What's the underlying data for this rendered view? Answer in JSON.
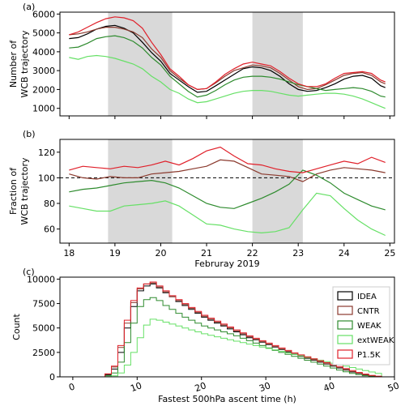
{
  "chart_data": [
    {
      "id": "a",
      "type": "line",
      "panel_label": "(a)",
      "ylabel_lines": [
        "Number of",
        "WCB trajectory"
      ],
      "xlim": [
        17.8,
        25.1
      ],
      "ylim": [
        600,
        6100
      ],
      "yticks": [
        1000,
        2000,
        3000,
        4000,
        5000,
        6000
      ],
      "shaded_periods": [
        [
          18.85,
          20.25
        ],
        [
          22.0,
          23.1
        ]
      ],
      "series": [
        {
          "name": "IDEA",
          "color": "#000000",
          "x": [
            18.0,
            18.2,
            18.4,
            18.6,
            18.8,
            19.0,
            19.2,
            19.4,
            19.6,
            19.8,
            20.0,
            20.2,
            20.4,
            20.6,
            20.8,
            21.0,
            21.2,
            21.4,
            21.6,
            21.8,
            22.0,
            22.2,
            22.4,
            22.6,
            22.8,
            23.0,
            23.2,
            23.4,
            23.6,
            23.8,
            24.0,
            24.2,
            24.4,
            24.6,
            24.8,
            24.9
          ],
          "y": [
            4700,
            4750,
            4950,
            5200,
            5350,
            5400,
            5250,
            5000,
            4500,
            3950,
            3500,
            2850,
            2500,
            2150,
            1850,
            1900,
            2200,
            2500,
            2800,
            3100,
            3200,
            3150,
            3000,
            2700,
            2300,
            2000,
            1900,
            1950,
            2100,
            2300,
            2550,
            2700,
            2750,
            2600,
            2200,
            2100
          ]
        },
        {
          "name": "CNTR",
          "color": "#8b3a2e",
          "x": [
            18.0,
            18.2,
            18.4,
            18.6,
            18.8,
            19.0,
            19.2,
            19.4,
            19.6,
            19.8,
            20.0,
            20.2,
            20.4,
            20.6,
            20.8,
            21.0,
            21.2,
            21.4,
            21.6,
            21.8,
            22.0,
            22.2,
            22.4,
            22.6,
            22.8,
            23.0,
            23.2,
            23.4,
            23.6,
            23.8,
            24.0,
            24.2,
            24.4,
            24.6,
            24.8,
            24.9
          ],
          "y": [
            4900,
            4950,
            5050,
            5200,
            5300,
            5300,
            5200,
            5050,
            4750,
            4150,
            3700,
            3000,
            2600,
            2250,
            2000,
            2050,
            2350,
            2700,
            3000,
            3150,
            3300,
            3250,
            3150,
            2850,
            2500,
            2150,
            2000,
            2050,
            2250,
            2500,
            2750,
            2850,
            2900,
            2750,
            2400,
            2300
          ]
        },
        {
          "name": "WEAK",
          "color": "#2e8b2e",
          "x": [
            18.0,
            18.2,
            18.4,
            18.6,
            18.8,
            19.0,
            19.2,
            19.4,
            19.6,
            19.8,
            20.0,
            20.2,
            20.4,
            20.6,
            20.8,
            21.0,
            21.2,
            21.4,
            21.6,
            21.8,
            22.0,
            22.2,
            22.4,
            22.6,
            22.8,
            23.0,
            23.2,
            23.4,
            23.6,
            23.8,
            24.0,
            24.2,
            24.4,
            24.6,
            24.8,
            24.9
          ],
          "y": [
            4200,
            4250,
            4450,
            4700,
            4800,
            4850,
            4750,
            4550,
            4200,
            3700,
            3300,
            2700,
            2300,
            1900,
            1600,
            1700,
            1950,
            2250,
            2500,
            2650,
            2700,
            2700,
            2650,
            2550,
            2400,
            2250,
            2150,
            2050,
            1950,
            2000,
            2050,
            2100,
            2050,
            1900,
            1650,
            1600
          ]
        },
        {
          "name": "extWEAK",
          "color": "#66e066",
          "x": [
            18.0,
            18.2,
            18.4,
            18.6,
            18.8,
            19.0,
            19.2,
            19.4,
            19.6,
            19.8,
            20.0,
            20.2,
            20.4,
            20.6,
            20.8,
            21.0,
            21.2,
            21.4,
            21.6,
            21.8,
            22.0,
            22.2,
            22.4,
            22.6,
            22.8,
            23.0,
            23.2,
            23.4,
            23.6,
            23.8,
            24.0,
            24.2,
            24.4,
            24.6,
            24.8,
            24.9
          ],
          "y": [
            3700,
            3600,
            3750,
            3800,
            3750,
            3650,
            3500,
            3350,
            3100,
            2700,
            2400,
            2000,
            1800,
            1500,
            1300,
            1350,
            1500,
            1650,
            1800,
            1900,
            1950,
            1950,
            1900,
            1800,
            1700,
            1650,
            1700,
            1750,
            1800,
            1800,
            1750,
            1650,
            1500,
            1300,
            1100,
            1000
          ]
        },
        {
          "name": "P1.5K",
          "color": "#e0202a",
          "x": [
            18.0,
            18.2,
            18.4,
            18.6,
            18.8,
            19.0,
            19.2,
            19.4,
            19.6,
            19.8,
            20.0,
            20.2,
            20.4,
            20.6,
            20.8,
            21.0,
            21.2,
            21.4,
            21.6,
            21.8,
            22.0,
            22.2,
            22.4,
            22.6,
            22.8,
            23.0,
            23.2,
            23.4,
            23.6,
            23.8,
            24.0,
            24.2,
            24.4,
            24.6,
            24.8,
            24.9
          ],
          "y": [
            4900,
            5050,
            5300,
            5550,
            5750,
            5850,
            5800,
            5650,
            5250,
            4500,
            3850,
            3100,
            2700,
            2250,
            2000,
            2050,
            2400,
            2800,
            3100,
            3350,
            3450,
            3350,
            3250,
            2950,
            2600,
            2300,
            2150,
            2150,
            2300,
            2600,
            2850,
            2900,
            2950,
            2850,
            2500,
            2400
          ]
        }
      ]
    },
    {
      "id": "b",
      "type": "line",
      "panel_label": "(b)",
      "ylabel_lines": [
        "Fraction of",
        "WCB trajectory"
      ],
      "xlabel": "Februray 2019",
      "xlim": [
        17.8,
        25.1
      ],
      "ylim": [
        49,
        130
      ],
      "yticks": [
        60,
        80,
        100,
        120
      ],
      "xticks": [
        18,
        19,
        20,
        21,
        22,
        23,
        24,
        25
      ],
      "reference_line": 100,
      "shaded_periods": [
        [
          18.85,
          20.25
        ],
        [
          22.0,
          23.1
        ]
      ],
      "series": [
        {
          "name": "CNTR",
          "color": "#8b3a2e",
          "x": [
            18.0,
            18.3,
            18.6,
            18.9,
            19.2,
            19.5,
            19.8,
            20.1,
            20.4,
            20.7,
            21.0,
            21.3,
            21.6,
            21.9,
            22.2,
            22.5,
            22.8,
            23.1,
            23.4,
            23.7,
            24.0,
            24.3,
            24.6,
            24.9
          ],
          "y": [
            103,
            100,
            99,
            101,
            100,
            100,
            103,
            104,
            105,
            107,
            109,
            114,
            113,
            108,
            103,
            102,
            101,
            97,
            103,
            106,
            108,
            107,
            106,
            104
          ]
        },
        {
          "name": "WEAK",
          "color": "#2e8b2e",
          "x": [
            18.0,
            18.3,
            18.6,
            18.9,
            19.2,
            19.5,
            19.8,
            20.1,
            20.4,
            20.7,
            21.0,
            21.3,
            21.6,
            21.9,
            22.2,
            22.5,
            22.8,
            23.1,
            23.4,
            23.7,
            24.0,
            24.3,
            24.6,
            24.9
          ],
          "y": [
            89,
            91,
            92,
            94,
            96,
            97,
            98,
            96,
            92,
            86,
            80,
            77,
            76,
            80,
            84,
            89,
            95,
            106,
            102,
            96,
            88,
            83,
            78,
            75
          ]
        },
        {
          "name": "extWEAK",
          "color": "#66e066",
          "x": [
            18.0,
            18.3,
            18.6,
            18.9,
            19.2,
            19.5,
            19.8,
            20.1,
            20.4,
            20.7,
            21.0,
            21.3,
            21.6,
            21.9,
            22.2,
            22.5,
            22.8,
            23.1,
            23.4,
            23.7,
            24.0,
            24.3,
            24.6,
            24.9
          ],
          "y": [
            78,
            76,
            74,
            74,
            78,
            79,
            80,
            82,
            78,
            71,
            64,
            63,
            60,
            58,
            57,
            58,
            61,
            75,
            88,
            86,
            76,
            67,
            60,
            55
          ]
        },
        {
          "name": "P1.5K",
          "color": "#e0202a",
          "x": [
            18.0,
            18.3,
            18.6,
            18.9,
            19.2,
            19.5,
            19.8,
            20.1,
            20.4,
            20.7,
            21.0,
            21.3,
            21.6,
            21.9,
            22.2,
            22.5,
            22.8,
            23.1,
            23.4,
            23.7,
            24.0,
            24.3,
            24.6,
            24.9
          ],
          "y": [
            106,
            109,
            108,
            107,
            109,
            108,
            110,
            113,
            110,
            115,
            121,
            124,
            117,
            111,
            110,
            107,
            105,
            104,
            107,
            110,
            113,
            111,
            116,
            112
          ]
        }
      ]
    },
    {
      "id": "c",
      "type": "histogram",
      "panel_label": "(c)",
      "xlabel": "Fastest 500hPa ascent time (h)",
      "ylabel": "Count",
      "xlim": [
        -2,
        50
      ],
      "ylim": [
        0,
        10200
      ],
      "xticks": [
        0,
        10,
        20,
        30,
        40,
        50
      ],
      "yticks": [
        0,
        2500,
        5000,
        7500,
        10000
      ],
      "ytick_labels": [
        "0",
        "2500",
        "5000",
        "7500",
        "10000"
      ],
      "bin_start": 5,
      "bin_width": 1,
      "legend_position": "right",
      "legend": [
        "IDEA",
        "CNTR",
        "WEAK",
        "extWEAK",
        "P1.5K"
      ],
      "series": [
        {
          "name": "IDEA",
          "color": "#000000",
          "values": [
            200,
            800,
            2500,
            5000,
            7200,
            8800,
            9300,
            9500,
            9100,
            8600,
            8200,
            7700,
            7300,
            6900,
            6500,
            6100,
            5800,
            5500,
            5200,
            4900,
            4600,
            4300,
            4000,
            3800,
            3550,
            3300,
            3050,
            2800,
            2550,
            2300,
            2100,
            1900,
            1700,
            1500,
            1300,
            1100,
            900,
            700,
            500,
            350,
            200,
            100,
            40
          ]
        },
        {
          "name": "CNTR",
          "color": "#8b3a2e",
          "values": [
            300,
            1000,
            3000,
            5500,
            7600,
            9000,
            9500,
            9600,
            9200,
            8700,
            8200,
            7800,
            7400,
            7000,
            6600,
            6200,
            5900,
            5600,
            5300,
            5000,
            4700,
            4400,
            4100,
            3850,
            3600,
            3350,
            3100,
            2850,
            2600,
            2350,
            2150,
            1950,
            1750,
            1550,
            1350,
            1150,
            950,
            750,
            550,
            380,
            220,
            110,
            50
          ]
        },
        {
          "name": "WEAK",
          "color": "#2e8b2e",
          "values": [
            100,
            400,
            1500,
            3500,
            5500,
            7200,
            7900,
            8100,
            7800,
            7300,
            6900,
            6500,
            6100,
            5800,
            5500,
            5200,
            5000,
            4800,
            4600,
            4400,
            4200,
            3950,
            3700,
            3450,
            3200,
            2950,
            2700,
            2500,
            2300,
            2100,
            1900,
            1700,
            1500,
            1300,
            1100,
            900,
            700,
            520,
            360,
            230,
            120,
            50,
            20
          ]
        },
        {
          "name": "extWEAK",
          "color": "#66e066",
          "values": [
            20,
            100,
            400,
            1200,
            2500,
            4000,
            5300,
            5900,
            5800,
            5600,
            5400,
            5200,
            5000,
            4800,
            4600,
            4400,
            4250,
            4100,
            3950,
            3800,
            3650,
            3500,
            3350,
            3200,
            3050,
            2900,
            2750,
            2600,
            2450,
            2300,
            2150,
            2000,
            1850,
            1700,
            1550,
            1400,
            1250,
            1100,
            950,
            800,
            650,
            500,
            350
          ]
        },
        {
          "name": "P1.5K",
          "color": "#e0202a",
          "values": [
            300,
            1100,
            3200,
            5800,
            7800,
            9100,
            9500,
            9700,
            9300,
            8800,
            8300,
            7900,
            7500,
            7100,
            6700,
            6300,
            6000,
            5700,
            5400,
            5100,
            4800,
            4500,
            4200,
            3950,
            3700,
            3450,
            3200,
            2950,
            2700,
            2450,
            2250,
            2050,
            1850,
            1650,
            1450,
            1250,
            1050,
            850,
            650,
            450,
            280,
            140,
            60
          ]
        }
      ]
    }
  ]
}
